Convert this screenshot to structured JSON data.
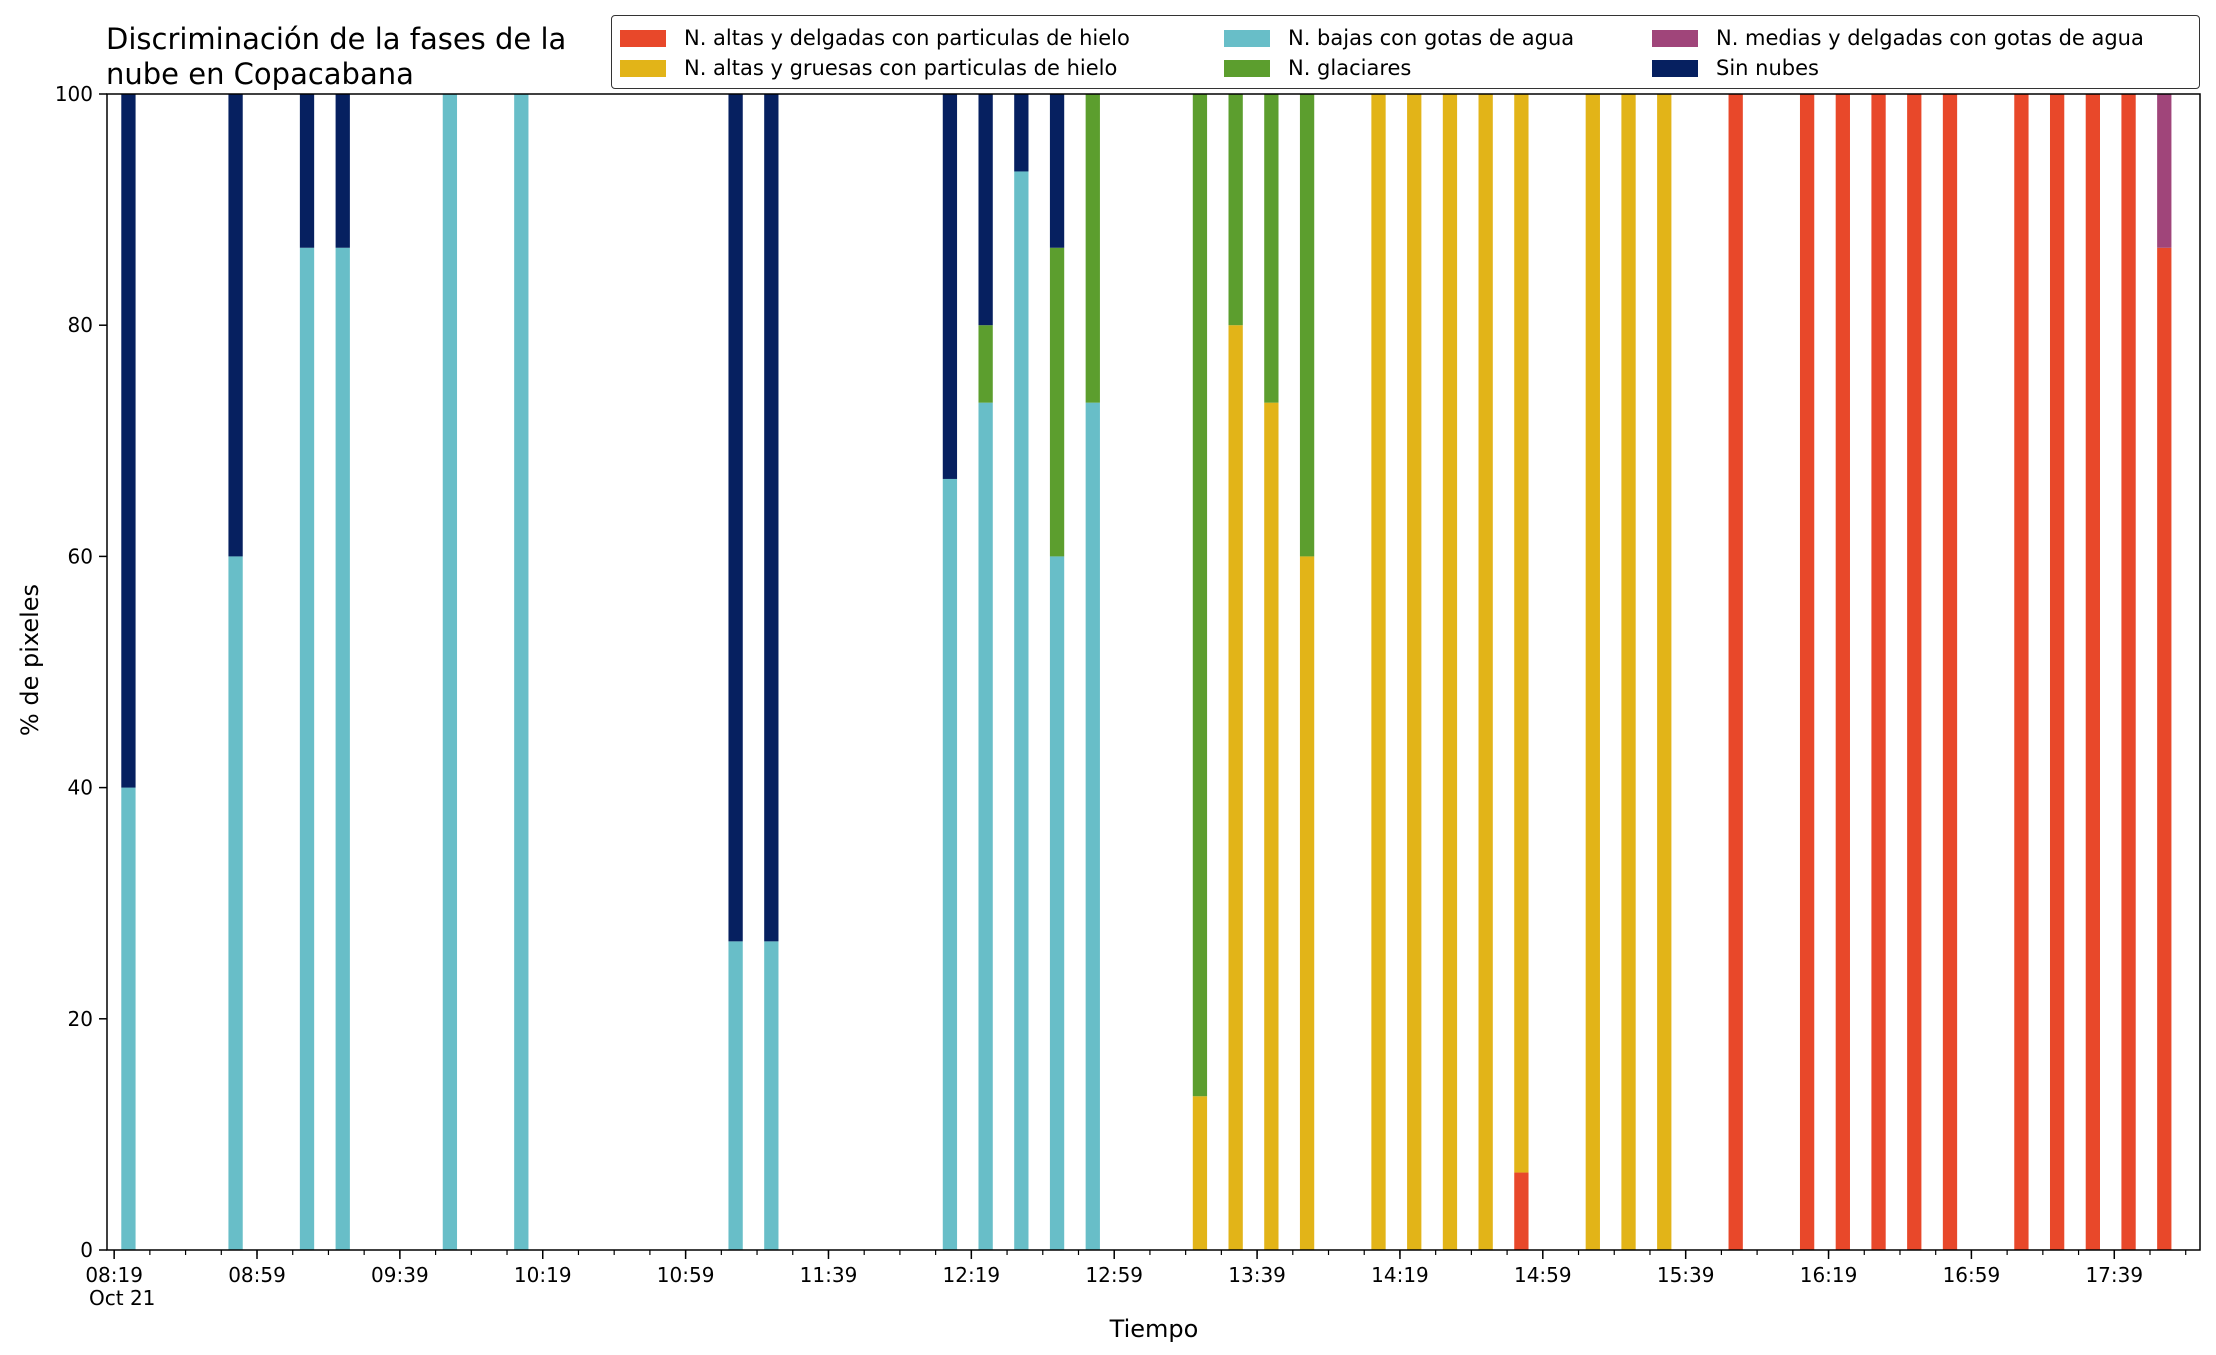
{
  "chart_data": {
    "type": "bar",
    "stacked": true,
    "title": "Discriminación de la fases de la\nnube en Copacabana",
    "xlabel": "Tiempo",
    "x_date_label": "Oct 21",
    "ylabel": "% de pixeles",
    "ylim": [
      0,
      100
    ],
    "yticks": [
      0,
      20,
      40,
      60,
      80,
      100
    ],
    "xlim": [
      "08:17",
      "18:03"
    ],
    "xticks": [
      "08:19",
      "08:59",
      "09:39",
      "10:19",
      "10:59",
      "11:39",
      "12:19",
      "12:59",
      "13:39",
      "14:19",
      "14:59",
      "15:39",
      "16:19",
      "16:59",
      "17:39"
    ],
    "x_minor_tick_interval_min": 10,
    "bar_width_min": 4,
    "legend_position": "top-right",
    "x": [
      "08:23",
      "08:53",
      "09:13",
      "09:23",
      "09:53",
      "10:13",
      "11:13",
      "11:23",
      "12:13",
      "12:23",
      "12:33",
      "12:43",
      "12:53",
      "13:23",
      "13:33",
      "13:43",
      "13:53",
      "14:13",
      "14:23",
      "14:33",
      "14:43",
      "14:53",
      "15:13",
      "15:23",
      "15:33",
      "15:53",
      "16:13",
      "16:23",
      "16:33",
      "16:43",
      "16:53",
      "17:13",
      "17:23",
      "17:33",
      "17:43",
      "17:53"
    ],
    "series": [
      {
        "name": "N. altas y delgadas con particulas de hielo",
        "color": "#e8482a",
        "values": [
          0,
          0,
          0,
          0,
          0,
          0,
          0,
          0,
          0,
          0,
          0,
          0,
          0,
          0,
          0,
          0,
          0,
          0,
          0,
          0,
          0,
          6.7,
          0,
          0,
          0,
          100,
          100,
          100,
          100,
          100,
          100,
          100,
          100,
          100,
          100,
          86.7
        ]
      },
      {
        "name": "N. altas y gruesas con particulas de hielo",
        "color": "#e2b418",
        "values": [
          0,
          0,
          0,
          0,
          0,
          0,
          0,
          0,
          0,
          0,
          0,
          0,
          0,
          13.3,
          80,
          73.3,
          60,
          100,
          100,
          100,
          100,
          93.3,
          100,
          100,
          100,
          0,
          0,
          0,
          0,
          0,
          0,
          0,
          0,
          0,
          0,
          0
        ]
      },
      {
        "name": "N. bajas con gotas de agua",
        "color": "#68bec8",
        "values": [
          40,
          60,
          86.7,
          86.7,
          100,
          100,
          26.7,
          26.7,
          66.7,
          73.3,
          93.3,
          60,
          73.3,
          0,
          0,
          0,
          0,
          0,
          0,
          0,
          0,
          0,
          0,
          0,
          0,
          0,
          0,
          0,
          0,
          0,
          0,
          0,
          0,
          0,
          0,
          0
        ]
      },
      {
        "name": "N. glaciares",
        "color": "#5c9e2e",
        "values": [
          0,
          0,
          0,
          0,
          0,
          0,
          0,
          0,
          0,
          6.7,
          0,
          26.7,
          26.7,
          86.7,
          20,
          26.7,
          40,
          0,
          0,
          0,
          0,
          0,
          0,
          0,
          0,
          0,
          0,
          0,
          0,
          0,
          0,
          0,
          0,
          0,
          0,
          0
        ]
      },
      {
        "name": "N. medias y delgadas con gotas de agua",
        "color": "#a0457a",
        "values": [
          0,
          0,
          0,
          0,
          0,
          0,
          0,
          0,
          0,
          0,
          0,
          0,
          0,
          0,
          0,
          0,
          0,
          0,
          0,
          0,
          0,
          0,
          0,
          0,
          0,
          0,
          0,
          0,
          0,
          0,
          0,
          0,
          0,
          0,
          0,
          13.3
        ]
      },
      {
        "name": "Sin nubes",
        "color": "#062060",
        "values": [
          60,
          40,
          13.3,
          13.3,
          0,
          0,
          73.3,
          73.3,
          33.3,
          20,
          6.7,
          13.3,
          0,
          0,
          0,
          0,
          0,
          0,
          0,
          0,
          0,
          0,
          0,
          0,
          0,
          0,
          0,
          0,
          0,
          0,
          0,
          0,
          0,
          0,
          0,
          0
        ]
      }
    ]
  }
}
